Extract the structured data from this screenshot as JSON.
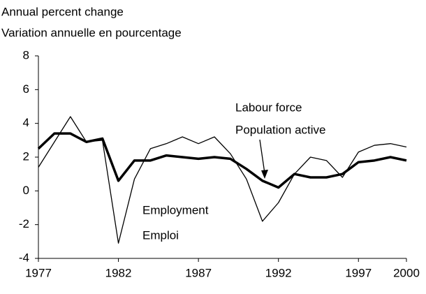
{
  "chart_data": {
    "type": "line",
    "y_title": [
      "Annual percent change",
      "Variation annuelle en pourcentage"
    ],
    "x": [
      1977,
      1978,
      1979,
      1980,
      1981,
      1982,
      1983,
      1984,
      1985,
      1986,
      1987,
      1988,
      1989,
      1990,
      1991,
      1992,
      1993,
      1994,
      1995,
      1996,
      1997,
      1998,
      1999,
      2000
    ],
    "series": [
      {
        "name": "Employment",
        "label_fr": "Emploi",
        "color": "#000000",
        "width": 1.3,
        "values": [
          1.4,
          2.9,
          4.4,
          2.9,
          3.0,
          -3.1,
          0.7,
          2.5,
          2.8,
          3.2,
          2.8,
          3.2,
          2.2,
          0.7,
          -1.8,
          -0.7,
          1.0,
          2.0,
          1.8,
          0.8,
          2.3,
          2.7,
          2.8,
          2.6
        ]
      },
      {
        "name": "Labour force",
        "label_fr": "Population active",
        "color": "#000000",
        "width": 3.5,
        "values": [
          2.5,
          3.4,
          3.4,
          2.9,
          3.1,
          0.6,
          1.8,
          1.8,
          2.1,
          2.0,
          1.9,
          2.0,
          1.9,
          1.3,
          0.6,
          0.2,
          1.0,
          0.8,
          0.8,
          1.0,
          1.7,
          1.8,
          2.0,
          1.8
        ]
      }
    ],
    "xlim": [
      1977,
      2000
    ],
    "xticks": [
      1977,
      1982,
      1987,
      1992,
      1997,
      2000
    ],
    "ylim": [
      -4,
      8
    ],
    "yticks": [
      -4,
      -2,
      0,
      2,
      4,
      6,
      8
    ]
  }
}
